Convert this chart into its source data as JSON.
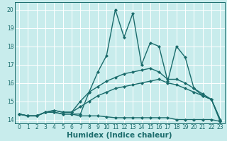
{
  "xlabel": "Humidex (Indice chaleur)",
  "bg_color": "#c8ecec",
  "line_color": "#1a6b6b",
  "grid_color": "#ffffff",
  "xlim": [
    -0.5,
    23.5
  ],
  "ylim": [
    13.8,
    20.4
  ],
  "xticks": [
    0,
    1,
    2,
    3,
    4,
    5,
    6,
    7,
    8,
    9,
    10,
    11,
    12,
    13,
    14,
    15,
    16,
    17,
    18,
    19,
    20,
    21,
    22,
    23
  ],
  "yticks": [
    14,
    15,
    16,
    17,
    18,
    19,
    20
  ],
  "series": [
    {
      "x": [
        0,
        1,
        2,
        3,
        4,
        5,
        6,
        7,
        8,
        9,
        10,
        11,
        12,
        13,
        14,
        15,
        16,
        17,
        18,
        19,
        20,
        21,
        22,
        23
      ],
      "y": [
        14.3,
        14.2,
        14.2,
        14.4,
        14.4,
        14.3,
        14.3,
        14.3,
        15.5,
        16.6,
        17.5,
        20.0,
        18.5,
        19.8,
        17.0,
        18.2,
        18.0,
        16.1,
        18.0,
        17.4,
        15.7,
        15.3,
        15.1,
        13.9
      ],
      "markersize": 2.5,
      "linewidth": 1.0
    },
    {
      "x": [
        0,
        1,
        2,
        3,
        4,
        5,
        6,
        7,
        8,
        9,
        10,
        11,
        12,
        13,
        14,
        15,
        16,
        17,
        18,
        19,
        20,
        21,
        22,
        23
      ],
      "y": [
        14.3,
        14.2,
        14.2,
        14.4,
        14.5,
        14.4,
        14.4,
        15.0,
        15.5,
        15.8,
        16.1,
        16.3,
        16.5,
        16.6,
        16.7,
        16.8,
        16.6,
        16.2,
        16.2,
        16.0,
        15.7,
        15.4,
        15.1,
        14.0
      ],
      "markersize": 2.5,
      "linewidth": 1.0
    },
    {
      "x": [
        0,
        1,
        2,
        3,
        4,
        5,
        6,
        7,
        8,
        9,
        10,
        11,
        12,
        13,
        14,
        15,
        16,
        17,
        18,
        19,
        20,
        21,
        22,
        23
      ],
      "y": [
        14.3,
        14.2,
        14.2,
        14.4,
        14.5,
        14.4,
        14.4,
        14.7,
        15.0,
        15.3,
        15.5,
        15.7,
        15.8,
        15.9,
        16.0,
        16.1,
        16.2,
        16.0,
        15.9,
        15.7,
        15.5,
        15.3,
        15.1,
        14.0
      ],
      "markersize": 2.5,
      "linewidth": 1.0
    },
    {
      "x": [
        0,
        1,
        2,
        3,
        4,
        5,
        6,
        7,
        8,
        9,
        10,
        11,
        12,
        13,
        14,
        15,
        16,
        17,
        18,
        19,
        20,
        21,
        22,
        23
      ],
      "y": [
        14.3,
        14.2,
        14.2,
        14.4,
        14.4,
        14.3,
        14.3,
        14.2,
        14.2,
        14.2,
        14.15,
        14.1,
        14.1,
        14.1,
        14.1,
        14.1,
        14.1,
        14.1,
        14.0,
        14.0,
        14.0,
        14.0,
        14.0,
        13.9
      ],
      "markersize": 2.5,
      "linewidth": 1.0
    }
  ],
  "tick_fontsize": 5.5,
  "label_fontsize": 7.5
}
